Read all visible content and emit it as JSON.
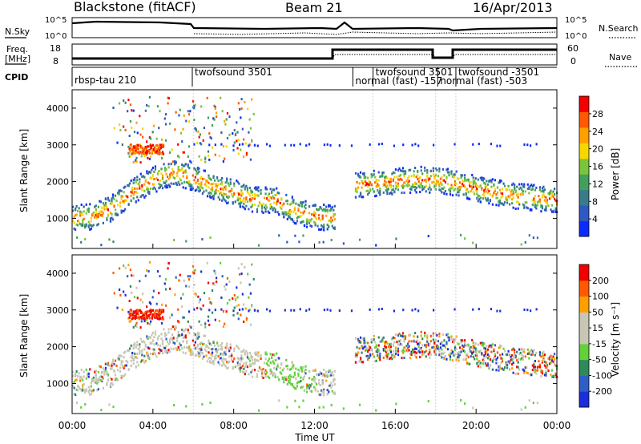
{
  "header": {
    "station": "Blackstone (fitACF)",
    "beam": "Beam 21",
    "date": "16/Apr/2013"
  },
  "status_panel": {
    "nsky_label": "N.Sky",
    "nsearch_label": "N.Search",
    "freq_label_line1": "Freq.",
    "freq_label_line2": "[MHz]",
    "nave_label": "Nave",
    "cpid_label": "CPID",
    "noise_ticks_left": [
      "10^5",
      "10^0"
    ],
    "noise_ticks_right": [
      "10^5",
      "10^0"
    ],
    "freq_ticks": [
      "18",
      "8"
    ],
    "nave_ticks": [
      "60",
      "0"
    ],
    "cpid_labels": [
      {
        "text": "rbsp-tau 210",
        "start_hour": 0.0
      },
      {
        "text": "twofsound 3501",
        "start_hour": 5.95
      },
      {
        "text": "normal (fast) -157",
        "start_hour": 13.9
      },
      {
        "text": "twofsound 3501",
        "start_hour": 14.9
      },
      {
        "text": "normal (fast) -503",
        "start_hour": 18.1
      },
      {
        "text": "twofsound -3501",
        "start_hour": 19.0
      }
    ]
  },
  "colors": {
    "power_scale": [
      "#0b2bff",
      "#2f58c2",
      "#3a7a8a",
      "#43a05a",
      "#7cc43a",
      "#f5d800",
      "#ffa000",
      "#ff5a00",
      "#f40000"
    ],
    "velocity_scale": [
      "#1a2fd9",
      "#2f5ec4",
      "#2e8a5a",
      "#62d13a",
      "#c8c6b4",
      "#c8c6b4",
      "#ffa000",
      "#ff5a00",
      "#f00000"
    ]
  },
  "chart_data": [
    {
      "type": "heatmap",
      "title": "",
      "xlabel": "",
      "ylabel": "Slant Range [km]",
      "xlim": [
        0,
        24
      ],
      "ylim": [
        180,
        4500
      ],
      "y_ticks": [
        "1000",
        "2000",
        "3000",
        "4000"
      ],
      "colorbar_label": "Power [dB]",
      "colorbar_ticks": [
        "28",
        "24",
        "20",
        "16",
        "12",
        "8",
        "4"
      ],
      "series": [
        {
          "name": "",
          "hours": [
            0,
            1,
            2,
            3,
            4,
            5,
            6,
            7,
            8,
            9,
            10,
            11,
            12,
            13
          ],
          "range_km": [
            1000,
            1050,
            1300,
            1750,
            2050,
            2250,
            2100,
            1850,
            1700,
            1500,
            1500,
            1200,
            1050,
            1000
          ]
        },
        {
          "name": "",
          "hours": [
            14,
            15,
            16,
            17,
            18,
            19,
            20,
            21,
            22,
            23,
            24
          ],
          "range_km": [
            1900,
            1950,
            2000,
            2050,
            2050,
            1950,
            1800,
            1700,
            1600,
            1550,
            1500
          ]
        }
      ]
    },
    {
      "type": "heatmap",
      "title": "",
      "xlabel": "Time UT",
      "ylabel": "Slant Range [km]",
      "xlim": [
        0,
        24
      ],
      "ylim": [
        180,
        4500
      ],
      "x_ticks": [
        "00:00",
        "04:00",
        "08:00",
        "12:00",
        "16:00",
        "20:00",
        "00:00"
      ],
      "y_ticks": [
        "1000",
        "2000",
        "3000",
        "4000"
      ],
      "colorbar_label": "Velocity [m s⁻¹]",
      "colorbar_ticks": [
        "200",
        "100",
        "50",
        "15",
        "-15",
        "-50",
        "-100",
        "-200"
      ]
    }
  ]
}
